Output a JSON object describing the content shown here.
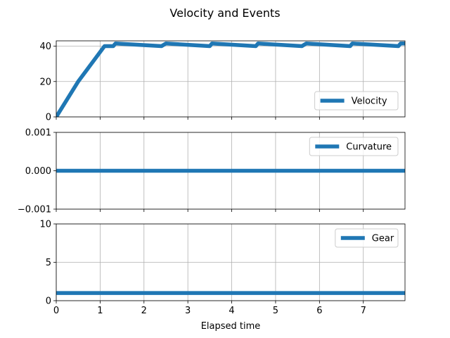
{
  "title": "Velocity and Events",
  "chart_data": [
    {
      "type": "line",
      "series": [
        {
          "name": "Velocity",
          "color": "#1f77b4",
          "x": [
            0,
            0.5,
            1.1,
            1.3,
            1.35,
            2.4,
            2.5,
            3.5,
            3.55,
            4.55,
            4.6,
            5.6,
            5.7,
            6.7,
            6.75,
            7.8,
            7.85,
            8.0
          ],
          "y": [
            0,
            20,
            40,
            40,
            41.5,
            40,
            41.5,
            40,
            41.5,
            40,
            41.5,
            40,
            41.5,
            40,
            41.5,
            40,
            41.5,
            41.5
          ]
        }
      ],
      "xlim": [
        0,
        7.95
      ],
      "ylim": [
        0,
        43
      ],
      "yticks": [
        "0",
        "20",
        "40"
      ],
      "ytick_values": [
        0,
        20,
        40
      ],
      "legend_position": "lower right",
      "grid": true
    },
    {
      "type": "line",
      "series": [
        {
          "name": "Curvature",
          "color": "#1f77b4",
          "x": [
            0,
            8.0
          ],
          "y": [
            0,
            0
          ]
        }
      ],
      "xlim": [
        0,
        7.95
      ],
      "ylim": [
        -0.001,
        0.001
      ],
      "yticks": [
        "−0.001",
        "0.000",
        "0.001"
      ],
      "ytick_values": [
        -0.001,
        0,
        0.001
      ],
      "legend_position": "upper right",
      "grid": true
    },
    {
      "type": "line",
      "series": [
        {
          "name": "Gear",
          "color": "#1f77b4",
          "x": [
            0,
            8.0
          ],
          "y": [
            1,
            1
          ]
        }
      ],
      "xlim": [
        0,
        7.95
      ],
      "ylim": [
        0,
        10
      ],
      "yticks": [
        "0",
        "5",
        "10"
      ],
      "ytick_values": [
        0,
        5,
        10
      ],
      "xticks": [
        "0",
        "1",
        "2",
        "3",
        "4",
        "5",
        "6",
        "7"
      ],
      "xtick_values": [
        0,
        1,
        2,
        3,
        4,
        5,
        6,
        7
      ],
      "xlabel": "Elapsed time",
      "legend_position": "upper right",
      "grid": true
    }
  ]
}
